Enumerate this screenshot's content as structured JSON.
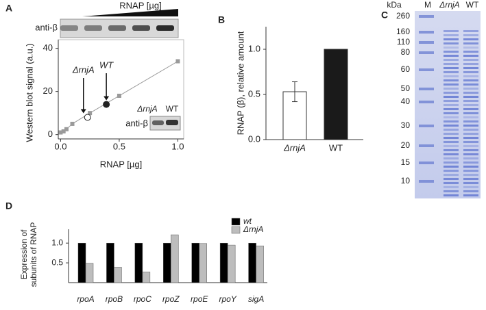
{
  "chart_data": [
    {
      "type": "scatter",
      "panel": "A",
      "blot_title": "RNAP [µg]",
      "blot_label": "anti-β",
      "xlabel": "RNAP [µg]",
      "ylabel": "Western blot signal (a.u.)",
      "xlim": [
        -0.02,
        1.05
      ],
      "ylim": [
        -2,
        44
      ],
      "xticks": [
        {
          "value": 0,
          "label": "0.0"
        },
        {
          "value": 0.5,
          "label": "0.5"
        },
        {
          "value": 1,
          "label": "1.0"
        }
      ],
      "yticks": [
        0,
        20,
        40
      ],
      "series": [
        {
          "color": "#9a9a9a",
          "line": true,
          "x": [
            0,
            0.025,
            0.05,
            0.1,
            0.25,
            0.5,
            1.0
          ],
          "values": [
            1,
            1.5,
            2.5,
            5,
            10,
            18,
            34
          ]
        },
        {
          "name": "ΔrnjA",
          "color": "#222222",
          "marker": "open",
          "x": [
            0.23
          ],
          "values": [
            8
          ]
        },
        {
          "name": "WT",
          "color": "#222222",
          "marker": "filled",
          "x": [
            0.39
          ],
          "values": [
            14
          ]
        }
      ],
      "inset": {
        "lanes": [
          "ΔrnjA",
          "WT"
        ],
        "label": "anti-β"
      }
    },
    {
      "type": "bar",
      "panel": "B",
      "ylabel": "RNAP (β), relative amount",
      "categories": [
        "ΔrnjA",
        "WT"
      ],
      "colors": [
        "#ffffff",
        "#1a1a1a"
      ],
      "values": [
        0.53,
        1.0
      ],
      "errors": [
        0.11,
        0
      ],
      "ylim": [
        0,
        1.25
      ],
      "yticks": [
        {
          "value": 0,
          "label": "0.0"
        },
        {
          "value": 0.5,
          "label": "0.5"
        },
        {
          "value": 1,
          "label": "1.0"
        }
      ]
    },
    {
      "type": "grouped-bar",
      "panel": "D",
      "ylabel": [
        "Expression of",
        "subunits of RNAP"
      ],
      "categories": [
        "rpoA",
        "rpoB",
        "rpoC",
        "rpoZ",
        "rpoE",
        "rpoY",
        "sigA"
      ],
      "series": [
        {
          "name": "wt",
          "color": "#000000",
          "values": [
            1,
            1,
            1,
            1,
            1,
            1,
            1
          ]
        },
        {
          "name": "ΔrnjA",
          "color": "#bdbdbd",
          "values": [
            0.49,
            0.39,
            0.27,
            1.21,
            0.99,
            0.95,
            0.93
          ]
        }
      ],
      "ylim": [
        0,
        1.35
      ],
      "yticks": [
        {
          "value": 0.5,
          "label": "0.5"
        },
        {
          "value": 1,
          "label": "1.0"
        }
      ],
      "legend": "top-right"
    }
  ],
  "gel": {
    "panel": "C",
    "unit": "kDa",
    "lanes": [
      "M",
      "ΔrnjA",
      "WT"
    ],
    "markers": [
      260,
      160,
      110,
      80,
      60,
      50,
      40,
      30,
      20,
      15,
      10
    ]
  }
}
